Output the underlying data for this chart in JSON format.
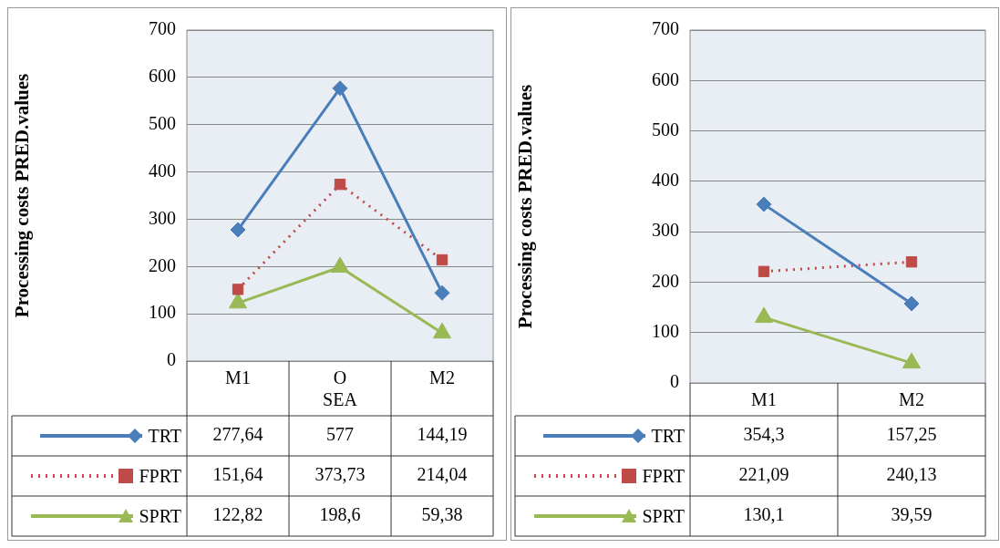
{
  "chart_data": [
    {
      "type": "line",
      "ylabel": "Processing costs PRED.values",
      "categories": [
        "M1",
        "O SEA",
        "M2"
      ],
      "ylim": [
        0,
        700
      ],
      "yticks": [
        0,
        100,
        200,
        300,
        400,
        500,
        600,
        700
      ],
      "grid": "y",
      "legend": "bottom",
      "series": [
        {
          "name": "TRT",
          "color": "#4a7ebb",
          "marker": "diamond",
          "line_style": "solid",
          "values": [
            277.64,
            577,
            144.19
          ],
          "value_labels": [
            "277,64",
            "577",
            "144,19"
          ]
        },
        {
          "name": "FPRT",
          "color": "#be4b48",
          "marker": "square",
          "line_style": "dotted",
          "values": [
            151.64,
            373.73,
            214.04
          ],
          "value_labels": [
            "151,64",
            "373,73",
            "214,04"
          ]
        },
        {
          "name": "SPRT",
          "color": "#98b954",
          "marker": "triangle",
          "line_style": "solid",
          "values": [
            122.82,
            198.6,
            59.38
          ],
          "value_labels": [
            "122,82",
            "198,6",
            "59,38"
          ]
        }
      ]
    },
    {
      "type": "line",
      "ylabel": "Processing costs PRED.values",
      "categories": [
        "M1",
        "M2"
      ],
      "ylim": [
        0,
        700
      ],
      "yticks": [
        0,
        100,
        200,
        300,
        400,
        500,
        600,
        700
      ],
      "grid": "y",
      "legend": "bottom",
      "series": [
        {
          "name": "TRT",
          "color": "#4a7ebb",
          "marker": "diamond",
          "line_style": "solid",
          "values": [
            354.3,
            157.25
          ],
          "value_labels": [
            "354,3",
            "157,25"
          ]
        },
        {
          "name": "FPRT",
          "color": "#be4b48",
          "marker": "square",
          "line_style": "dotted",
          "values": [
            221.09,
            240.13
          ],
          "value_labels": [
            "221,09",
            "240,13"
          ]
        },
        {
          "name": "SPRT",
          "color": "#98b954",
          "marker": "triangle",
          "line_style": "solid",
          "values": [
            130.1,
            39.59
          ],
          "value_labels": [
            "130,1",
            "39,59"
          ]
        }
      ]
    }
  ]
}
